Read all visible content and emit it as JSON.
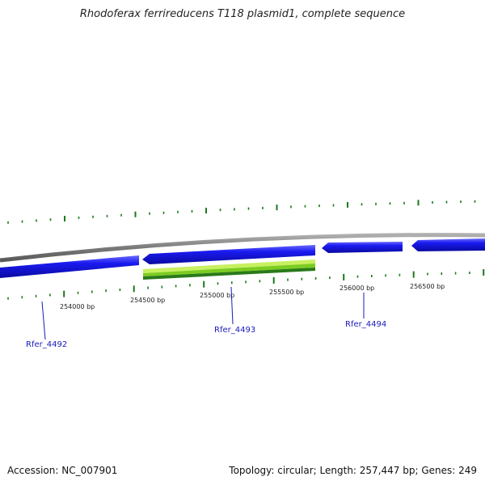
{
  "title": "Rhodoferax ferrireducens T118 plasmid1, complete sequence",
  "footer": {
    "accession": "Accession: NC_007901",
    "summary": "Topology: circular; Length: 257,447 bp; Genes: 249"
  },
  "colors": {
    "backbone": "#8a8a8a",
    "gene_forward": "#1010e0",
    "gene_highlight": "#88dd22",
    "gene_highlight_dark": "#2a7a1a",
    "tick": "#1a7a1a",
    "label": "#1a1ab8"
  },
  "tick_labels": [
    "254000 bp",
    "254500 bp",
    "255000 bp",
    "255500 bp",
    "256000 bp",
    "256500 bp"
  ],
  "genes": [
    {
      "name": "Rfer_4492"
    },
    {
      "name": "Rfer_4493"
    },
    {
      "name": "Rfer_4494"
    }
  ]
}
